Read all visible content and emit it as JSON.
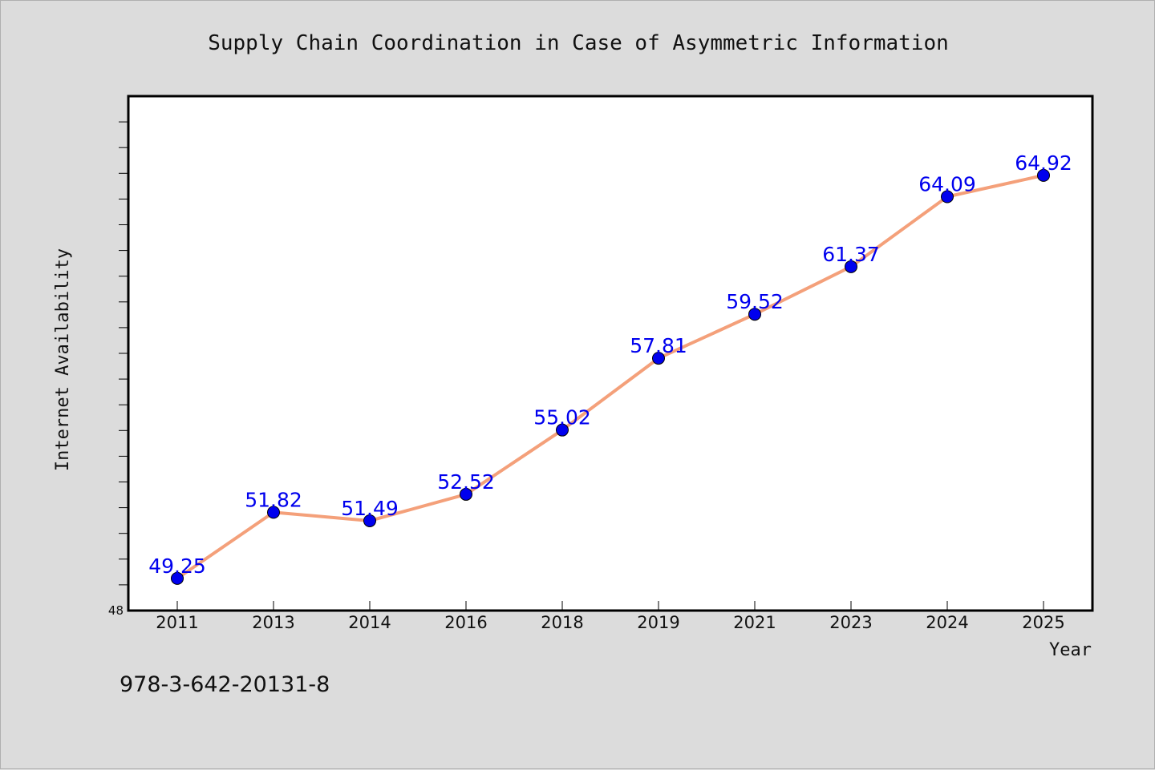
{
  "chart_data": {
    "type": "line",
    "title": "Supply Chain Coordination in Case of Asymmetric Information",
    "xlabel": "Year",
    "ylabel": "Internet Availability",
    "categories": [
      "2011",
      "2013",
      "2014",
      "2016",
      "2018",
      "2019",
      "2021",
      "2023",
      "2024",
      "2025"
    ],
    "values": [
      49.25,
      51.82,
      51.49,
      52.52,
      55.02,
      57.81,
      59.52,
      61.37,
      64.09,
      64.92
    ],
    "data_labels": [
      "49.25",
      "51.82",
      "51.49",
      "52.52",
      "55.02",
      "57.81",
      "59.52",
      "61.37",
      "64.09",
      "64.92"
    ],
    "y_tick_labels": [
      "48"
    ],
    "ylim": [
      48,
      68
    ],
    "y_minor_step": 1,
    "grid": false,
    "legend": "none",
    "colors": {
      "line": "#f4a07a",
      "marker": "#0000ee",
      "marker_edge": "#000000",
      "data_label": "#0000ee",
      "background": "#dcdcdc",
      "plot_background": "#ffffff"
    }
  },
  "footnote": "978-3-642-20131-8"
}
